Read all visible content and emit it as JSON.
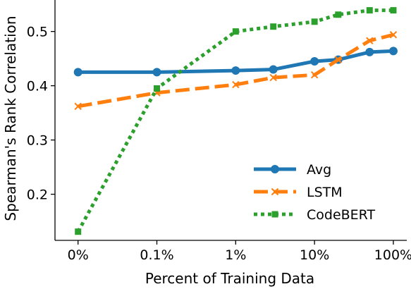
{
  "chart_data": {
    "type": "line",
    "title": "",
    "xlabel": "Percent of Training Data",
    "ylabel": "Spearman's Rank Correlation",
    "x_scale": "log",
    "x_ticks": [
      {
        "value": 0.01,
        "label": "0%"
      },
      {
        "value": 0.1,
        "label": "0.1%"
      },
      {
        "value": 1,
        "label": "1%"
      },
      {
        "value": 10,
        "label": "10%"
      },
      {
        "value": 100,
        "label": "100%"
      }
    ],
    "xlim": [
      0.0051,
      148
    ],
    "y_ticks": [
      {
        "value": 0.2,
        "label": "0.2"
      },
      {
        "value": 0.3,
        "label": "0.3"
      },
      {
        "value": 0.4,
        "label": "0.4"
      },
      {
        "value": 0.5,
        "label": "0.5"
      }
    ],
    "ylim": [
      0.115,
      0.558
    ],
    "grid": false,
    "legend_position": "lower-right",
    "series": [
      {
        "name": "Avg",
        "color": "#1f77b4",
        "line_style": "solid",
        "marker": "circle",
        "x": [
          0.01,
          0.1,
          1,
          3,
          10,
          20,
          50,
          100
        ],
        "y": [
          0.425,
          0.425,
          0.428,
          0.43,
          0.445,
          0.448,
          0.462,
          0.464
        ]
      },
      {
        "name": "LSTM",
        "color": "#ff7f0e",
        "line_style": "dashed",
        "marker": "x",
        "x": [
          0.01,
          0.1,
          1,
          3,
          10,
          20,
          50,
          100
        ],
        "y": [
          0.362,
          0.387,
          0.402,
          0.415,
          0.42,
          0.448,
          0.483,
          0.494
        ]
      },
      {
        "name": "CodeBERT",
        "color": "#2ca02c",
        "line_style": "dotted",
        "marker": "square",
        "x": [
          0.01,
          0.1,
          1,
          3,
          10,
          20,
          50,
          100
        ],
        "y": [
          0.131,
          0.395,
          0.5,
          0.509,
          0.518,
          0.531,
          0.539,
          0.539
        ]
      }
    ]
  }
}
